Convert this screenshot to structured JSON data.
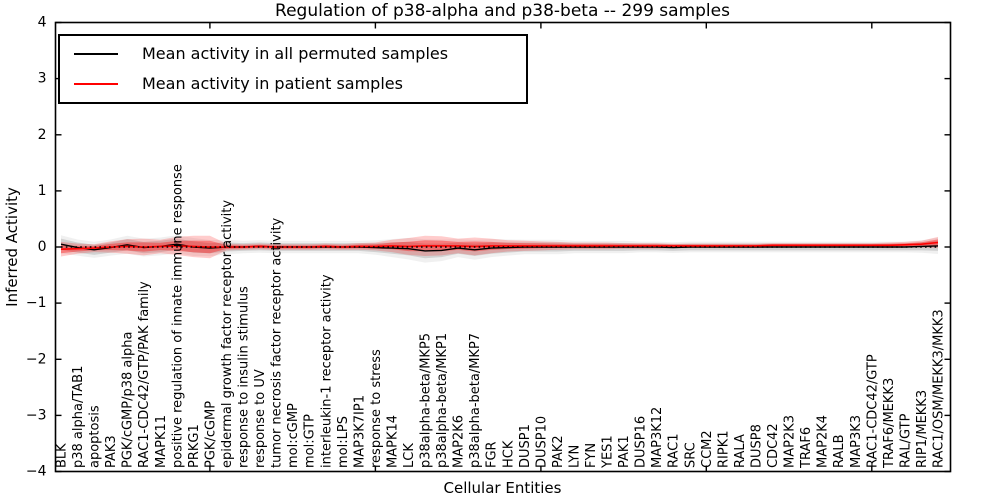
{
  "figure": {
    "title": "Regulation of p38-alpha and p38-beta -- 299 samples",
    "xlabel": "Cellular Entities",
    "ylabel": "Inferred Activity"
  },
  "legend": {
    "items": [
      {
        "label": "Mean activity in all permuted samples",
        "color": "#000000"
      },
      {
        "label": "Mean activity in patient samples",
        "color": "#ff0000"
      }
    ]
  },
  "chart_data": {
    "type": "line",
    "title": "Regulation of p38-alpha and p38-beta -- 299 samples",
    "xlabel": "Cellular Entities",
    "ylabel": "Inferred Activity",
    "ylim": [
      -4,
      4
    ],
    "yticks": [
      4,
      3,
      2,
      1,
      0,
      -1,
      -2,
      -3,
      -4
    ],
    "xtick_every": 10,
    "grid": false,
    "legend_position": "upper left",
    "zero_line": {
      "style": "dotted",
      "color": "#000000",
      "y": 0
    },
    "categories": [
      "BLK",
      "p38 alpha/TAB1",
      "apoptosis",
      "PAK3",
      "PGK/cGMP/p38 alpha",
      "RAC1-CDC42/GTP/PAK family",
      "MAPK11",
      "positive regulation of innate immune response",
      "PRKG1",
      "PGK/cGMP",
      "epidermal growth factor receptor activity",
      "response to insulin stimulus",
      "response to UV",
      "tumor necrosis factor receptor activity",
      "mol:cGMP",
      "mol:GTP",
      "interleukin-1 receptor activity",
      "mol:LPS",
      "MAP3K7IP1",
      "response to stress",
      "MAPK14",
      "LCK",
      "p38alpha-beta/MKP5",
      "p38alpha-beta/MKP1",
      "MAP2K6",
      "p38alpha-beta/MKP7",
      "FGR",
      "HCK",
      "DUSP1",
      "DUSP10",
      "PAK2",
      "LYN",
      "FYN",
      "YES1",
      "PAK1",
      "DUSP16",
      "MAP3K12",
      "RAC1",
      "SRC",
      "CCM2",
      "RIPK1",
      "RALA",
      "DUSP8",
      "CDC42",
      "MAP2K3",
      "TRAF6",
      "MAP2K4",
      "RALB",
      "MAP3K3",
      "RAC1-CDC42/GTP",
      "TRAF6/MEKK3",
      "RAL/GTP",
      "RIP1/MEKK3",
      "RAC1/OSM/MEKK3/MKK3"
    ],
    "series": [
      {
        "name": "Mean activity in all permuted samples",
        "color": "#000000",
        "band_color": "#000000",
        "band_alpha": 0.13,
        "values": [
          0.05,
          -0.01,
          -0.05,
          -0.01,
          0.04,
          -0.01,
          0.01,
          0.05,
          0.0,
          -0.02,
          0.0,
          0.0,
          0.01,
          0.0,
          0.0,
          0.0,
          0.0,
          0.0,
          0.0,
          -0.01,
          -0.02,
          -0.03,
          -0.07,
          -0.06,
          -0.02,
          -0.05,
          -0.02,
          -0.01,
          0.0,
          0.0,
          0.0,
          0.0,
          0.0,
          0.0,
          0.0,
          0.0,
          0.0,
          -0.01,
          0.0,
          0.0,
          0.0,
          0.0,
          0.0,
          0.0,
          0.0,
          0.0,
          0.0,
          0.0,
          0.0,
          0.0,
          0.0,
          0.0,
          0.01,
          0.02
        ],
        "std": [
          0.1,
          0.09,
          0.09,
          0.09,
          0.1,
          0.1,
          0.1,
          0.1,
          0.1,
          0.09,
          0.08,
          0.07,
          0.07,
          0.07,
          0.07,
          0.07,
          0.07,
          0.07,
          0.07,
          0.08,
          0.1,
          0.12,
          0.13,
          0.12,
          0.1,
          0.11,
          0.1,
          0.09,
          0.08,
          0.08,
          0.08,
          0.07,
          0.07,
          0.07,
          0.07,
          0.06,
          0.06,
          0.06,
          0.06,
          0.06,
          0.06,
          0.06,
          0.06,
          0.06,
          0.06,
          0.06,
          0.06,
          0.06,
          0.06,
          0.06,
          0.06,
          0.06,
          0.07,
          0.09
        ]
      },
      {
        "name": "Mean activity in patient samples",
        "color": "#ff0000",
        "band_color": "#ff0000",
        "band_alpha": 0.2,
        "values": [
          -0.04,
          -0.03,
          -0.02,
          0.0,
          0.01,
          0.0,
          0.01,
          0.02,
          0.01,
          0.0,
          0.0,
          0.0,
          0.01,
          0.0,
          0.0,
          0.0,
          0.01,
          0.0,
          0.01,
          0.01,
          0.02,
          0.01,
          0.02,
          0.02,
          0.02,
          0.01,
          0.02,
          0.02,
          0.02,
          0.02,
          0.02,
          0.02,
          0.02,
          0.02,
          0.02,
          0.02,
          0.02,
          0.02,
          0.02,
          0.02,
          0.02,
          0.02,
          0.02,
          0.03,
          0.03,
          0.03,
          0.03,
          0.03,
          0.03,
          0.03,
          0.03,
          0.04,
          0.05,
          0.08
        ],
        "std": [
          0.13,
          0.09,
          0.07,
          0.1,
          0.13,
          0.15,
          0.12,
          0.16,
          0.19,
          0.2,
          0.06,
          0.05,
          0.05,
          0.05,
          0.05,
          0.05,
          0.05,
          0.05,
          0.06,
          0.07,
          0.11,
          0.15,
          0.18,
          0.17,
          0.13,
          0.16,
          0.13,
          0.1,
          0.09,
          0.08,
          0.07,
          0.06,
          0.06,
          0.06,
          0.05,
          0.05,
          0.05,
          0.04,
          0.04,
          0.04,
          0.04,
          0.04,
          0.04,
          0.04,
          0.04,
          0.04,
          0.04,
          0.04,
          0.04,
          0.04,
          0.05,
          0.05,
          0.06,
          0.1
        ]
      }
    ]
  }
}
